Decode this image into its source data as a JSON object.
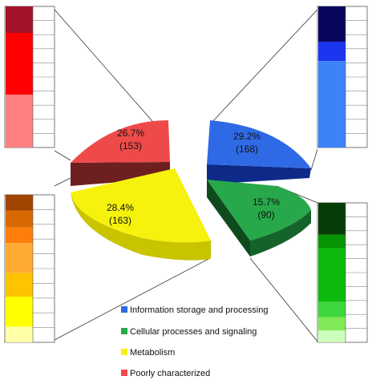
{
  "chart_data": {
    "type": "pie",
    "title": "",
    "three_d": true,
    "exploded": true,
    "legend_position": "bottom-right",
    "slices": [
      {
        "name": "Information storage and processing",
        "percent_label": "29.2%",
        "count_label": "(168)",
        "value": 168,
        "color": "#2f6ae6"
      },
      {
        "name": "Cellular processes and signaling",
        "percent_label": "15.7%",
        "count_label": "(90)",
        "value": 90,
        "color": "#27a84a"
      },
      {
        "name": "Metabolism",
        "percent_label": "28.4%",
        "count_label": "(163)",
        "value": 163,
        "color": "#f6f20e"
      },
      {
        "name": "Poorly characterized",
        "percent_label": "26.7%",
        "count_label": "(153)",
        "value": 153,
        "color": "#ef4a4a"
      }
    ],
    "breakdown_bars": [
      {
        "series": "Poorly characterized",
        "position": "top-left",
        "segments": [
          {
            "value": 3,
            "color": "#a3122a"
          },
          {
            "value": 7,
            "color": "#ff0000"
          },
          {
            "value": 6,
            "color": "#ff8080"
          }
        ]
      },
      {
        "series": "Metabolism",
        "position": "bottom-left",
        "segments": [
          {
            "value": 1.2,
            "color": "#a14400"
          },
          {
            "value": 1.3,
            "color": "#d86800"
          },
          {
            "value": 1.2,
            "color": "#ff7d0a"
          },
          {
            "value": 2.3,
            "color": "#ffaa33"
          },
          {
            "value": 1.8,
            "color": "#ffc400"
          },
          {
            "value": 2.3,
            "color": "#ffff00"
          },
          {
            "value": 1.2,
            "color": "#ffffa8"
          }
        ]
      },
      {
        "series": "Information storage and processing",
        "position": "top-right",
        "segments": [
          {
            "value": 4.2,
            "color": "#07075e"
          },
          {
            "value": 2.3,
            "color": "#1c35ee"
          },
          {
            "value": 10.3,
            "color": "#3c83fa"
          }
        ]
      },
      {
        "series": "Cellular processes and signaling",
        "position": "bottom-right",
        "segments": [
          {
            "value": 3.8,
            "color": "#063d06"
          },
          {
            "value": 1.6,
            "color": "#049404"
          },
          {
            "value": 6.4,
            "color": "#0dba0d"
          },
          {
            "value": 1.8,
            "color": "#3ed63e"
          },
          {
            "value": 1.6,
            "color": "#7fea55"
          },
          {
            "value": 1.4,
            "color": "#ccffbb"
          }
        ]
      }
    ]
  }
}
